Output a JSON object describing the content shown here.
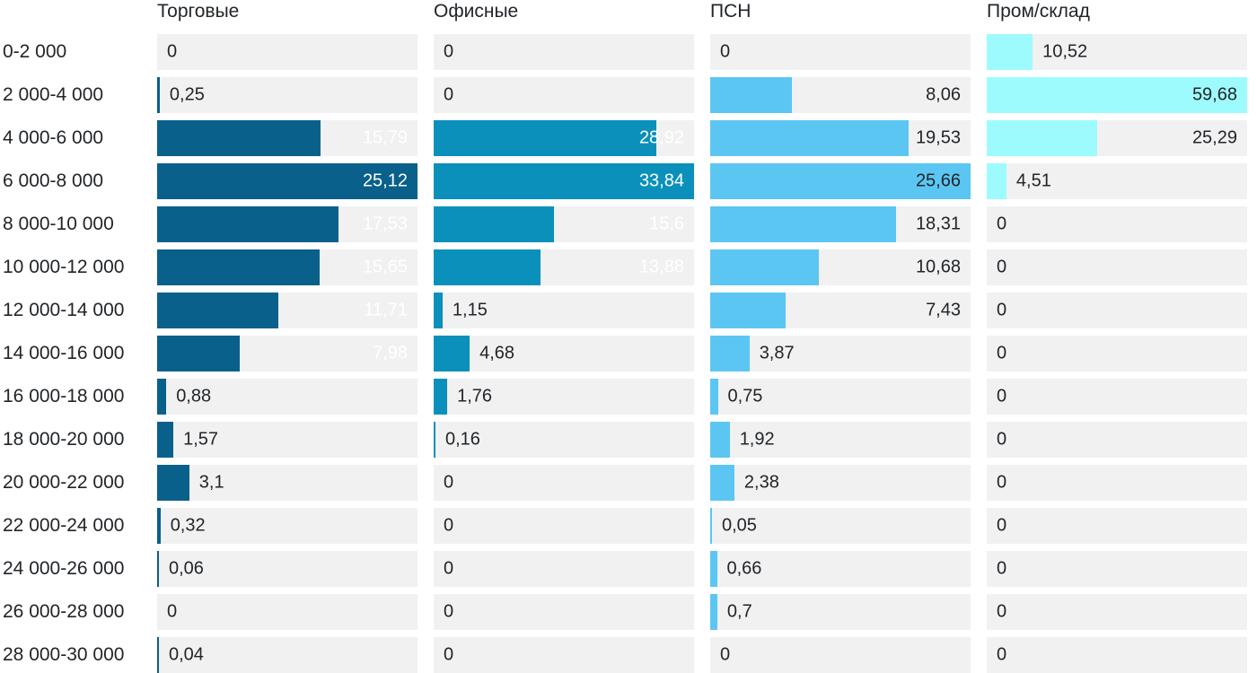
{
  "chart_data": {
    "type": "bar",
    "orientation": "horizontal",
    "title": "",
    "xlabel": "",
    "ylabel": "",
    "grid": false,
    "legend_position": "column headers on top",
    "scaling_note": "each column of bars is scaled independently to that column's maximum value; track background is light gray",
    "value_decimal_separator": ",",
    "categories": [
      "0-2 000",
      "2 000-4 000",
      "4 000-6 000",
      "6 000-8 000",
      "8 000-10 000",
      "10 000-12 000",
      "12 000-14 000",
      "14 000-16 000",
      "16 000-18 000",
      "18 000-20 000",
      "20 000-22 000",
      "22 000-24 000",
      "24 000-26 000",
      "26 000-28 000",
      "28 000-30 000"
    ],
    "series": [
      {
        "name": "Торговые",
        "bar_color": "#09608b",
        "inside_label_color": "#ffffff",
        "values": [
          0,
          0.25,
          15.79,
          25.12,
          17.53,
          15.65,
          11.71,
          7.98,
          0.88,
          1.57,
          3.1,
          0.32,
          0.06,
          0,
          0.04
        ],
        "labels": [
          "0",
          "0,25",
          "15,79",
          "25,12",
          "17,53",
          "15,65",
          "11,71",
          "7,98",
          "0,88",
          "1,57",
          "3,1",
          "0,32",
          "0,06",
          "0",
          "0,04"
        ]
      },
      {
        "name": "Офисные",
        "bar_color": "#0a90bb",
        "inside_label_color": "#ffffff",
        "values": [
          0,
          0,
          28.92,
          33.84,
          15.6,
          13.88,
          1.15,
          4.68,
          1.76,
          0.16,
          0,
          0,
          0,
          0,
          0
        ],
        "labels": [
          "0",
          "0",
          "28,92",
          "33,84",
          "15,6",
          "13,88",
          "1,15",
          "4,68",
          "1,76",
          "0,16",
          "0",
          "0",
          "0",
          "0",
          "0"
        ]
      },
      {
        "name": "ПСН",
        "bar_color": "#5cc6f3",
        "inside_label_color": "#212529",
        "values": [
          0,
          8.06,
          19.53,
          25.66,
          18.31,
          10.68,
          7.43,
          3.87,
          0.75,
          1.92,
          2.38,
          0.05,
          0.66,
          0.7,
          0
        ],
        "labels": [
          "0",
          "8,06",
          "19,53",
          "25,66",
          "18,31",
          "10,68",
          "7,43",
          "3,87",
          "0,75",
          "1,92",
          "2,38",
          "0,05",
          "0,66",
          "0,7",
          "0"
        ]
      },
      {
        "name": "Пром/склад",
        "bar_color": "#9efbfd",
        "inside_label_color": "#212529",
        "values": [
          10.52,
          59.68,
          25.29,
          4.51,
          0,
          0,
          0,
          0,
          0,
          0,
          0,
          0,
          0,
          0,
          0
        ],
        "labels": [
          "10,52",
          "59,68",
          "25,29",
          "4,51",
          "0",
          "0",
          "0",
          "0",
          "0",
          "0",
          "0",
          "0",
          "0",
          "0",
          "0"
        ]
      }
    ],
    "colors": {
      "track_background": "#f1f1f2",
      "text": "#212529",
      "inside_label_dark_bars": "#ffffff"
    }
  }
}
